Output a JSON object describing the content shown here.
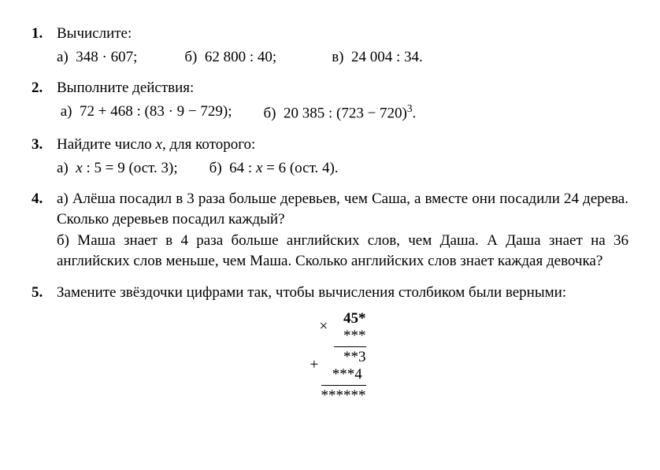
{
  "problems": [
    {
      "num": "1.",
      "intro": "Вычислите:",
      "subs": [
        "а)  348 · 607;",
        "б)  62 800 : 40;",
        "в)  24 004 : 34."
      ],
      "gaps": [
        "gap-s",
        "gap-m"
      ]
    },
    {
      "num": "2.",
      "intro": "Выполните действия:",
      "subs": [
        " а)  72 + 468 : (83 · 9 − 729);",
        "б)  20 385 : (723 − 720)"
      ],
      "sup": "3",
      "tail": ".",
      "gaps": [
        "gap-l"
      ]
    },
    {
      "num": "3.",
      "intro_html": "Найдите число <span class=\"ital\">x</span>, для которого:",
      "subs_html": [
        "а)  <span class=\"ital\">x</span> : 5 = 9 (ост. 3);",
        "б)  64 : <span class=\"ital\">x</span> = 6 (ост. 4)."
      ],
      "gaps": [
        "gap-l"
      ]
    },
    {
      "num": "4.",
      "para_a": "а) Алёша посадил в 3 раза больше деревьев, чем Саша, а вместе они посадили 24 дерева. Сколько деревьев посадил каждый?",
      "para_b": "б) Маша знает в 4 раза больше английских слов, чем Даша. А Даша знает на 36 английских слов меньше, чем Маша. Сколько английских слов знает каждая девочка?"
    },
    {
      "num": "5.",
      "intro": "Замените звёздочки цифрами так, чтобы вычисления столбиком были верными:",
      "calc": {
        "l1": "45*",
        "l2": "***",
        "l3": "**3",
        "l4": "***4 ",
        "l5": "******",
        "op1": "×",
        "op2": "+"
      }
    }
  ]
}
